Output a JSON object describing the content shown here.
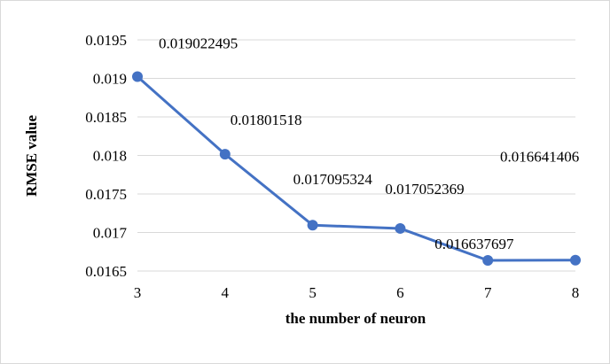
{
  "chart_data": {
    "type": "line",
    "xlabel": "the number of neuron",
    "ylabel": "RMSE value",
    "x": [
      3,
      4,
      5,
      6,
      7,
      8
    ],
    "series": [
      {
        "values": [
          0.019022495,
          0.01801518,
          0.017095324,
          0.017052369,
          0.016637697,
          0.016641406
        ],
        "labels": [
          "0.019022495",
          "0.01801518",
          "0.017095324",
          "0.017052369",
          "0.016637697",
          "0.016641406"
        ],
        "color": "#4472c4"
      }
    ],
    "ylim": [
      0.0165,
      0.0195
    ],
    "yticks": [
      "0.0165",
      "0.017",
      "0.0175",
      "0.018",
      "0.0185",
      "0.019",
      "0.0195"
    ],
    "xticks": [
      "3",
      "4",
      "5",
      "6",
      "7",
      "8"
    ],
    "grid": true,
    "legend": "none"
  }
}
